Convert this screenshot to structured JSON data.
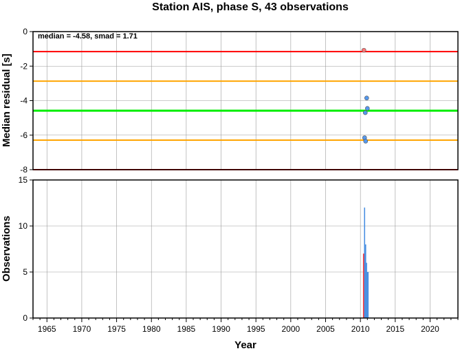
{
  "title": "Station AIS, phase S, 43 observations",
  "chart_data": [
    {
      "type": "scatter",
      "ylabel": "Median residual [s]",
      "annotation": "median = -4.58, smad = 1.71",
      "xlim": [
        1963,
        2024
      ],
      "ylim": [
        -8,
        0
      ],
      "yticks": [
        0,
        -2,
        -4,
        -6,
        -8
      ],
      "xticks": [
        1965,
        1970,
        1975,
        1980,
        1985,
        1990,
        1995,
        2000,
        2005,
        2010,
        2015,
        2020
      ],
      "grid": true,
      "reference_lines": [
        {
          "y": -1.16,
          "color": "#ff0000"
        },
        {
          "y": -2.87,
          "color": "#ffa500"
        },
        {
          "y": -4.58,
          "color": "#00ee00"
        },
        {
          "y": -6.29,
          "color": "#ffa500"
        },
        {
          "y": -8.0,
          "color": "#ff0000"
        }
      ],
      "points": [
        {
          "x": 2010.5,
          "y": -1.08,
          "color": "#ff7777"
        },
        {
          "x": 2010.9,
          "y": -3.85,
          "color": "#5599ee"
        },
        {
          "x": 2011.0,
          "y": -4.45,
          "color": "#5599ee"
        },
        {
          "x": 2010.7,
          "y": -4.7,
          "color": "#5599ee"
        },
        {
          "x": 2010.6,
          "y": -6.15,
          "color": "#5599ee"
        },
        {
          "x": 2010.75,
          "y": -6.35,
          "color": "#5599ee"
        }
      ]
    },
    {
      "type": "bar",
      "ylabel": "Observations",
      "xlabel": "Year",
      "xlim": [
        1963,
        2024
      ],
      "ylim": [
        0,
        15
      ],
      "yticks": [
        0,
        5,
        10,
        15
      ],
      "xticks": [
        1965,
        1970,
        1975,
        1980,
        1985,
        1990,
        1995,
        2000,
        2005,
        2010,
        2015,
        2020
      ],
      "grid": true,
      "bars": [
        {
          "x": 2010.45,
          "value": 7,
          "color": "#ff3333"
        },
        {
          "x": 2010.6,
          "value": 12,
          "color": "#4a90e2"
        },
        {
          "x": 2010.75,
          "value": 8,
          "color": "#4a90e2"
        },
        {
          "x": 2010.88,
          "value": 6,
          "color": "#4a90e2"
        },
        {
          "x": 2011.0,
          "value": 5,
          "color": "#4a90e2"
        },
        {
          "x": 2011.1,
          "value": 5,
          "color": "#4a90e2"
        }
      ]
    }
  ]
}
